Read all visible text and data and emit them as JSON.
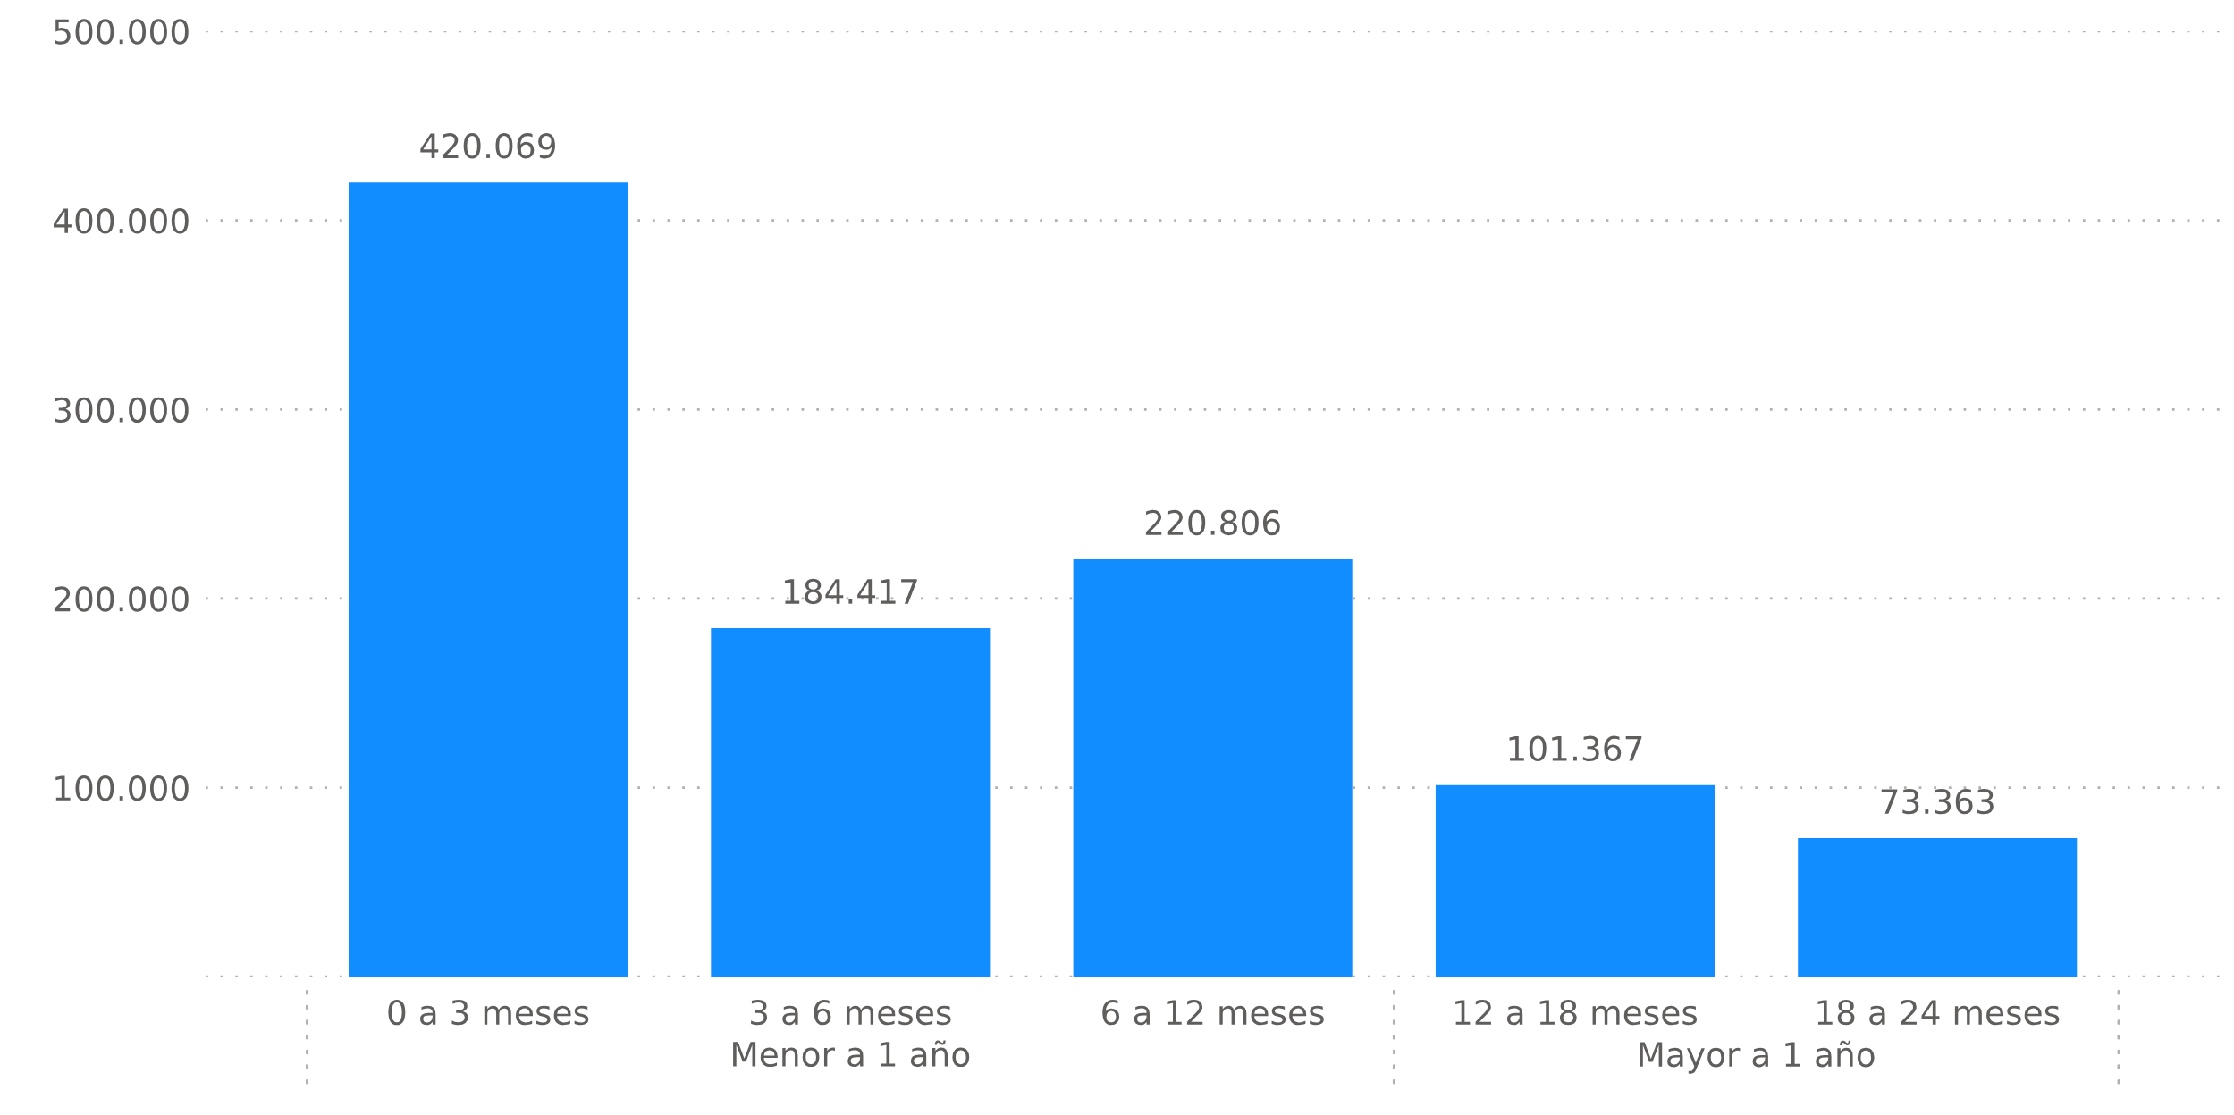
{
  "chart_data": {
    "type": "bar",
    "categories": [
      "0 a 3 meses",
      "3 a 6 meses",
      "6 a 12 meses",
      "12 a 18 meses",
      "18 a 24 meses"
    ],
    "values": [
      420069,
      184417,
      220806,
      101367,
      73363
    ],
    "value_labels": [
      "420.069",
      "184.417",
      "220.806",
      "101.367",
      "73.363"
    ],
    "color": "#118dff",
    "ylim": [
      0,
      500000
    ],
    "yticks": [
      {
        "value": 0,
        "label": null
      },
      {
        "value": 100000,
        "label": "100.000"
      },
      {
        "value": 200000,
        "label": "200.000"
      },
      {
        "value": 300000,
        "label": "300.000"
      },
      {
        "value": 400000,
        "label": "400.000"
      },
      {
        "value": 500000,
        "label": "500.000"
      }
    ],
    "grid": "y",
    "legend": false,
    "annotations": [
      "Menor a 1 año",
      "Mayor a 1 año"
    ]
  }
}
